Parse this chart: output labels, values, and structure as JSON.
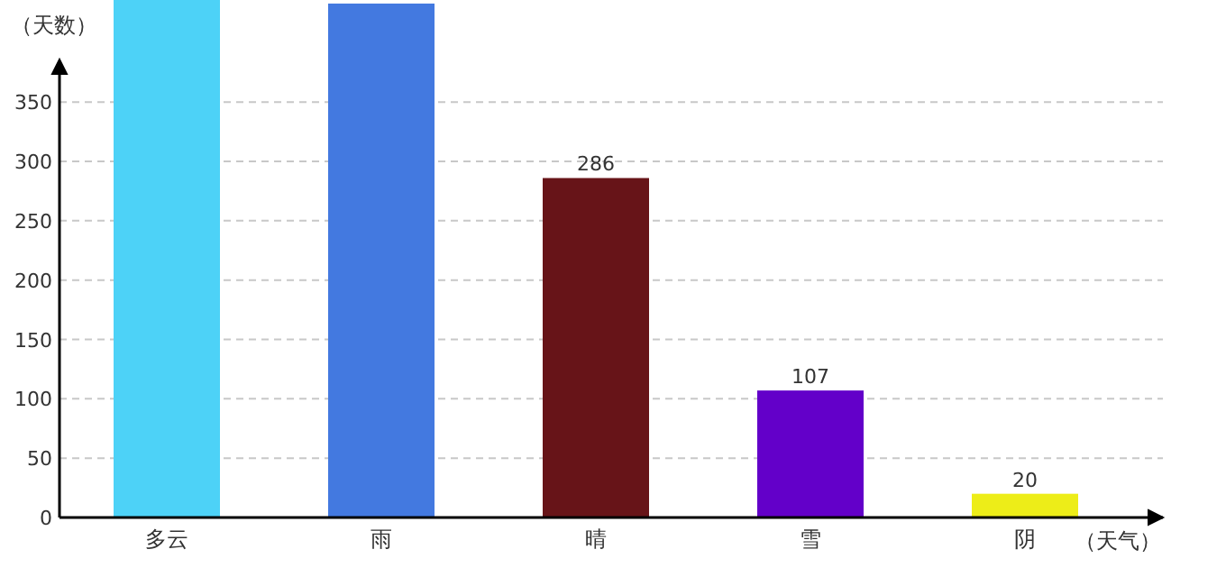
{
  "chart_data": {
    "type": "bar",
    "ylabel": "（天数）",
    "xlabel": "（天气）",
    "categories": [
      "多云",
      "雨",
      "晴",
      "雪",
      "阴"
    ],
    "values": [
      436,
      433,
      286,
      107,
      20
    ],
    "colors": [
      "#4dd2f7",
      "#4379e0",
      "#671418",
      "#6300c9",
      "#eded18"
    ],
    "value_labels": [
      null,
      null,
      "286",
      "107",
      "20"
    ],
    "ylim": [
      0,
      436
    ],
    "yticks": [
      0,
      50,
      100,
      150,
      200,
      250,
      300,
      350
    ],
    "grid": "y"
  }
}
